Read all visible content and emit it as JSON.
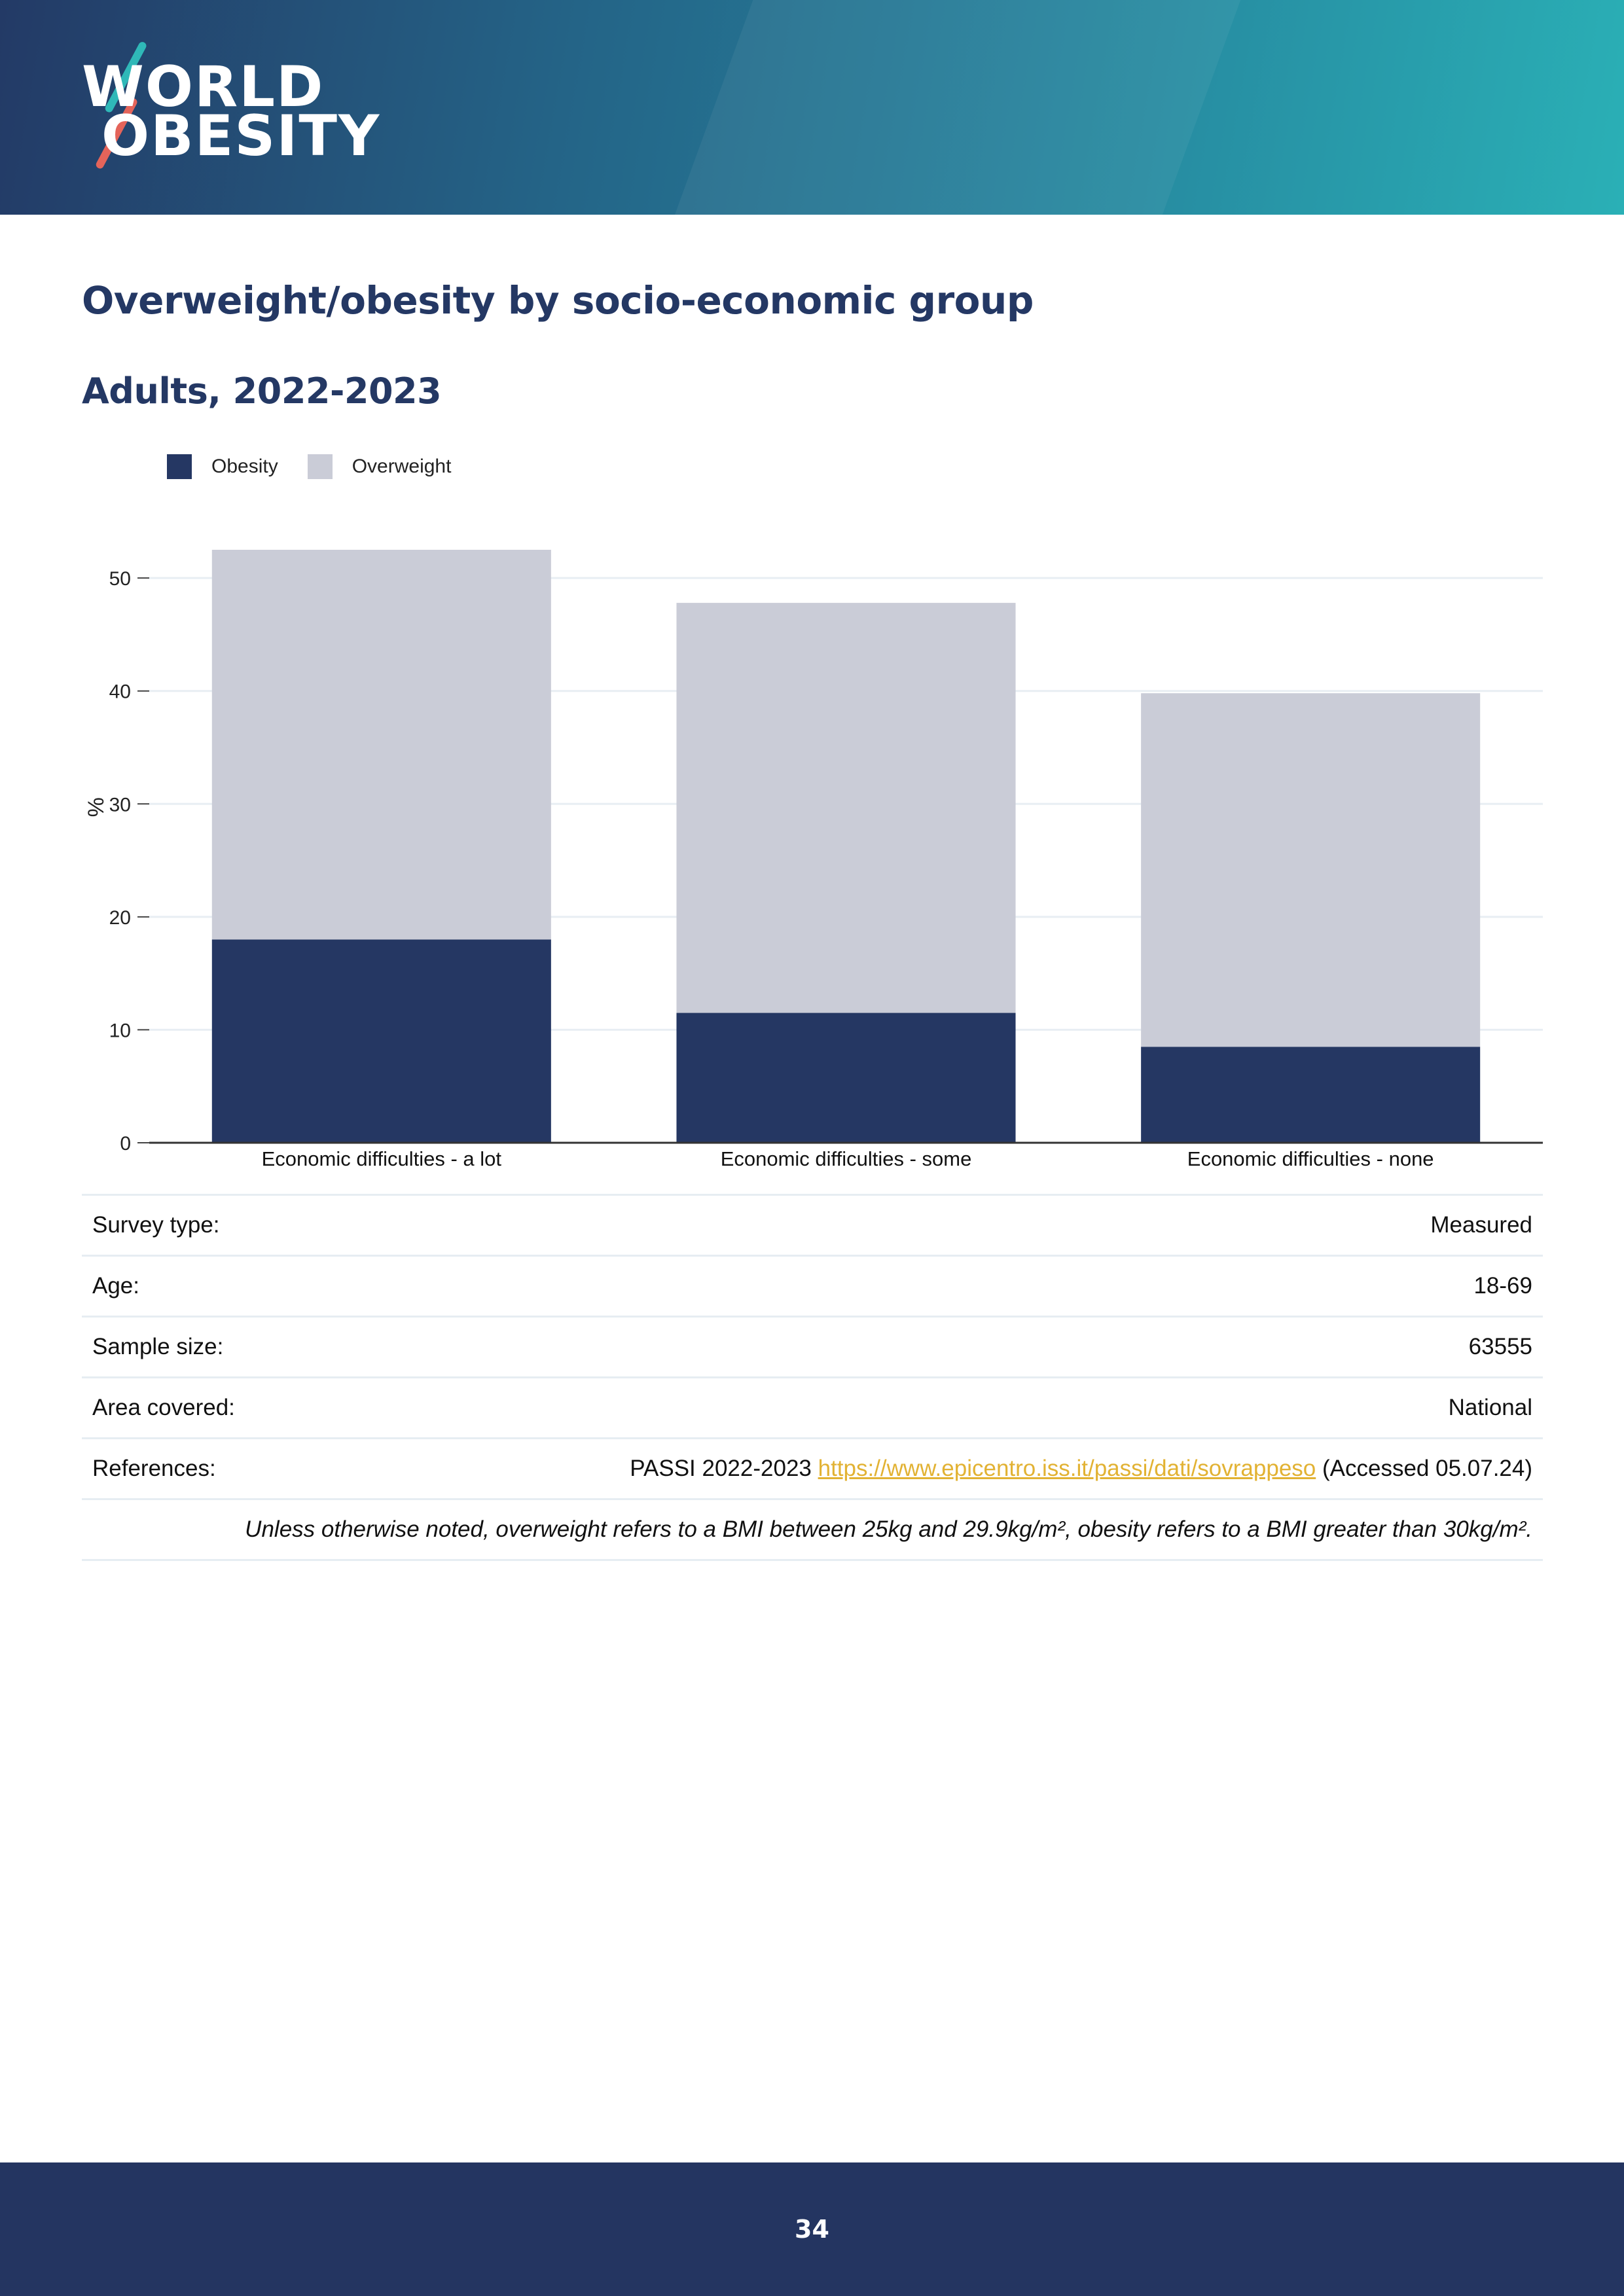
{
  "header": {
    "logo_line1": "WORLD",
    "logo_line2": "OBESITY"
  },
  "title": "Overweight/obesity by socio-economic group",
  "subtitle": "Adults, 2022-2023",
  "colors": {
    "obesity": "#253763",
    "overweight": "#caccd7",
    "link": "#e2b233",
    "heading": "#243864",
    "footer": "#243561"
  },
  "chart_data": {
    "type": "bar",
    "stacked": true,
    "categories": [
      "Economic difficulties - a lot",
      "Economic difficulties - some",
      "Economic difficulties - none"
    ],
    "series": [
      {
        "name": "Obesity",
        "values": [
          18.0,
          11.5,
          8.5
        ]
      },
      {
        "name": "Overweight",
        "values": [
          34.5,
          36.3,
          31.3
        ]
      }
    ],
    "ylabel": "%",
    "ylim": [
      0,
      52.5
    ],
    "yticks": [
      0,
      10,
      20,
      30,
      40,
      50
    ],
    "grid": true,
    "legend_position": "top-left"
  },
  "info": {
    "rows": [
      {
        "label": "Survey type:",
        "value": "Measured"
      },
      {
        "label": "Age:",
        "value": "18-69"
      },
      {
        "label": "Sample size:",
        "value": "63555"
      },
      {
        "label": "Area covered:",
        "value": "National"
      }
    ],
    "references": {
      "label": "References:",
      "prefix": "PASSI 2022-2023",
      "link": "https://www.epicentro.iss.it/passi/dati/sovrappeso",
      "suffix": "(Accessed 05.07.24)"
    },
    "note": "Unless otherwise noted, overweight refers to a BMI between 25kg and 29.9kg/m², obesity refers to a BMI greater than 30kg/m²."
  },
  "footer": {
    "page_number": "34"
  }
}
